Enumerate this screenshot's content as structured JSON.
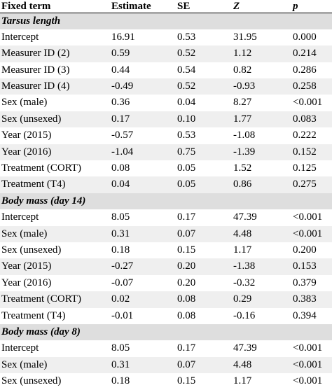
{
  "header": [
    "Fixed term",
    "Estimate",
    "SE",
    "Z",
    "p"
  ],
  "rows": [
    {
      "type": "section",
      "cells": [
        "Tarsus length"
      ]
    },
    {
      "type": "data",
      "cells": [
        "Intercept",
        "16.91",
        "0.53",
        "31.95",
        "0.000"
      ]
    },
    {
      "type": "data",
      "cells": [
        "Measurer ID (2)",
        "0.59",
        "0.52",
        "1.12",
        "0.214"
      ]
    },
    {
      "type": "data",
      "cells": [
        "Measurer ID (3)",
        "0.44",
        "0.54",
        "0.82",
        "0.286"
      ]
    },
    {
      "type": "data",
      "cells": [
        "Measurer ID (4)",
        "-0.49",
        "0.52",
        "-0.93",
        "0.258"
      ]
    },
    {
      "type": "data",
      "cells": [
        "Sex (male)",
        "0.36",
        "0.04",
        "8.27",
        "<0.001"
      ]
    },
    {
      "type": "data",
      "cells": [
        "Sex (unsexed)",
        "0.17",
        "0.10",
        "1.77",
        "0.083"
      ]
    },
    {
      "type": "data",
      "cells": [
        "Year (2015)",
        "-0.57",
        "0.53",
        "-1.08",
        "0.222"
      ]
    },
    {
      "type": "data",
      "cells": [
        "Year (2016)",
        "-1.04",
        "0.75",
        "-1.39",
        "0.152"
      ]
    },
    {
      "type": "data",
      "cells": [
        "Treatment (CORT)",
        "0.08",
        "0.05",
        "1.52",
        "0.125"
      ]
    },
    {
      "type": "data",
      "cells": [
        "Treatment (T4)",
        "0.04",
        "0.05",
        "0.86",
        "0.275"
      ]
    },
    {
      "type": "section",
      "cells": [
        "Body mass (day 14)"
      ]
    },
    {
      "type": "data",
      "cells": [
        "Intercept",
        "8.05",
        "0.17",
        "47.39",
        "<0.001"
      ]
    },
    {
      "type": "data",
      "cells": [
        "Sex (male)",
        "0.31",
        "0.07",
        "4.48",
        "<0.001"
      ]
    },
    {
      "type": "data",
      "cells": [
        "Sex (unsexed)",
        "0.18",
        "0.15",
        "1.17",
        "0.200"
      ]
    },
    {
      "type": "data",
      "cells": [
        "Year (2015)",
        "-0.27",
        "0.20",
        "-1.38",
        "0.153"
      ]
    },
    {
      "type": "data",
      "cells": [
        "Year (2016)",
        "-0.07",
        "0.20",
        "-0.32",
        "0.379"
      ]
    },
    {
      "type": "data",
      "cells": [
        "Treatment (CORT)",
        "0.02",
        "0.08",
        "0.29",
        "0.383"
      ]
    },
    {
      "type": "data",
      "cells": [
        "Treatment (T4)",
        "-0.01",
        "0.08",
        "-0.16",
        "0.394"
      ]
    },
    {
      "type": "section",
      "cells": [
        "Body mass (day 8)"
      ]
    },
    {
      "type": "data",
      "cells": [
        "Intercept",
        "8.05",
        "0.17",
        "47.39",
        "<0.001"
      ]
    },
    {
      "type": "data",
      "cells": [
        "Sex (male)",
        "0.31",
        "0.07",
        "4.48",
        "<0.001"
      ]
    },
    {
      "type": "data",
      "cells": [
        "Sex (unsexed)",
        "0.18",
        "0.15",
        "1.17",
        "<0.001"
      ]
    }
  ]
}
